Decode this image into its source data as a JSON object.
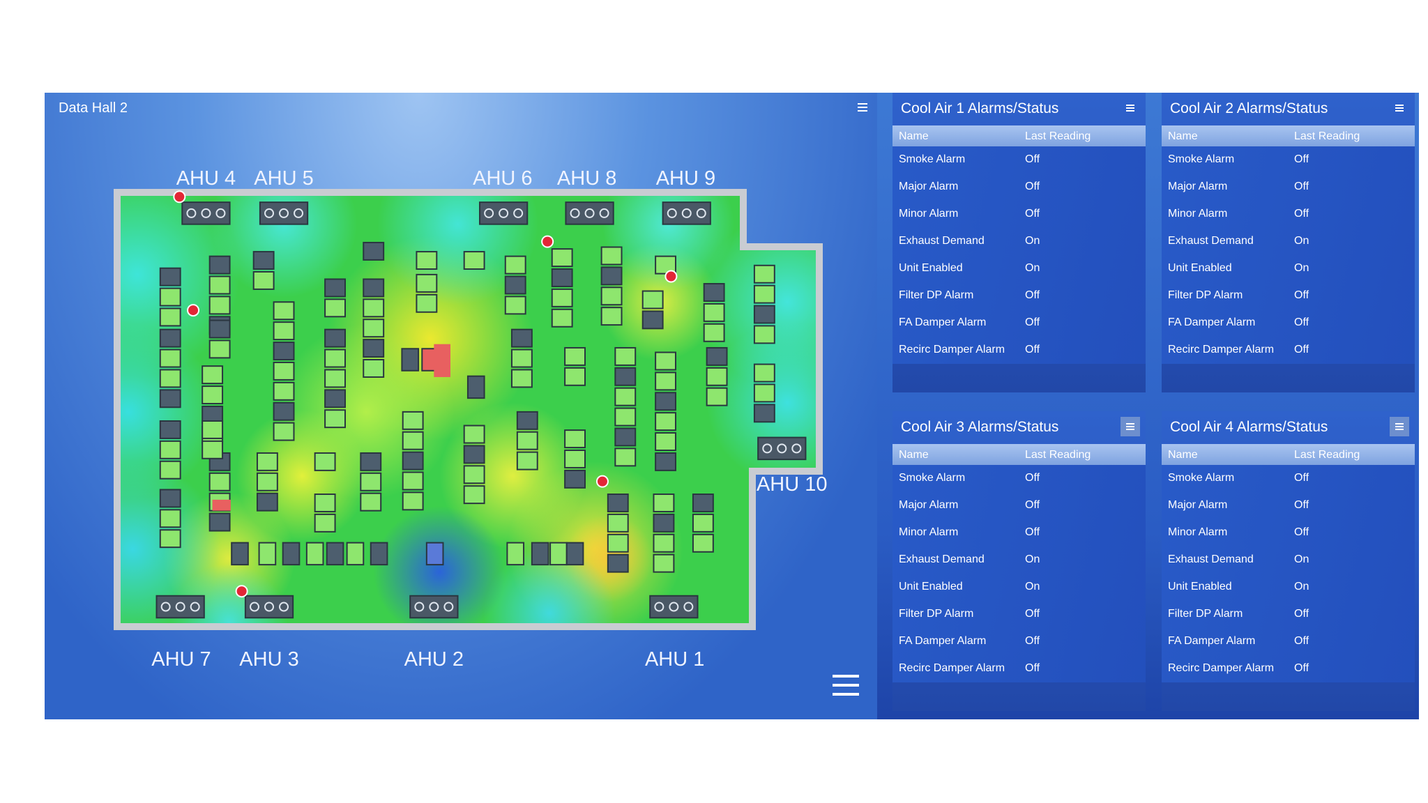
{
  "data_hall": {
    "title": "Data Hall 2",
    "ahu_labels": [
      "AHU 4",
      "AHU 5",
      "AHU 6",
      "AHU 8",
      "AHU 9",
      "AHU 10",
      "AHU 7",
      "AHU 3",
      "AHU 2",
      "AHU 1"
    ]
  },
  "panels": [
    {
      "title": "Cool Air 1 Alarms/Status",
      "columns": [
        "Name",
        "Last Reading"
      ],
      "rows": [
        [
          "Smoke Alarm",
          "Off"
        ],
        [
          "Major Alarm",
          "Off"
        ],
        [
          "Minor Alarm",
          "Off"
        ],
        [
          "Exhaust Demand",
          "On"
        ],
        [
          "Unit Enabled",
          "On"
        ],
        [
          "Filter DP Alarm",
          "Off"
        ],
        [
          "FA Damper Alarm",
          "Off"
        ],
        [
          "Recirc Damper Alarm",
          "Off"
        ]
      ]
    },
    {
      "title": "Cool Air 2 Alarms/Status",
      "columns": [
        "Name",
        "Last Reading"
      ],
      "rows": [
        [
          "Smoke Alarm",
          "Off"
        ],
        [
          "Major Alarm",
          "Off"
        ],
        [
          "Minor Alarm",
          "Off"
        ],
        [
          "Exhaust Demand",
          "On"
        ],
        [
          "Unit Enabled",
          "On"
        ],
        [
          "Filter DP Alarm",
          "Off"
        ],
        [
          "FA Damper Alarm",
          "Off"
        ],
        [
          "Recirc Damper Alarm",
          "Off"
        ]
      ]
    },
    {
      "title": "Cool Air 3 Alarms/Status",
      "columns": [
        "Name",
        "Last Reading"
      ],
      "rows": [
        [
          "Smoke Alarm",
          "Off"
        ],
        [
          "Major Alarm",
          "Off"
        ],
        [
          "Minor Alarm",
          "Off"
        ],
        [
          "Exhaust Demand",
          "On"
        ],
        [
          "Unit Enabled",
          "On"
        ],
        [
          "Filter DP Alarm",
          "Off"
        ],
        [
          "FA Damper Alarm",
          "Off"
        ],
        [
          "Recirc Damper Alarm",
          "Off"
        ]
      ]
    },
    {
      "title": "Cool Air 4 Alarms/Status",
      "columns": [
        "Name",
        "Last Reading"
      ],
      "rows": [
        [
          "Smoke Alarm",
          "Off"
        ],
        [
          "Major Alarm",
          "Off"
        ],
        [
          "Minor Alarm",
          "Off"
        ],
        [
          "Exhaust Demand",
          "On"
        ],
        [
          "Unit Enabled",
          "On"
        ],
        [
          "Filter DP Alarm",
          "Off"
        ],
        [
          "FA Damper Alarm",
          "Off"
        ],
        [
          "Recirc Damper Alarm",
          "Off"
        ]
      ]
    }
  ]
}
